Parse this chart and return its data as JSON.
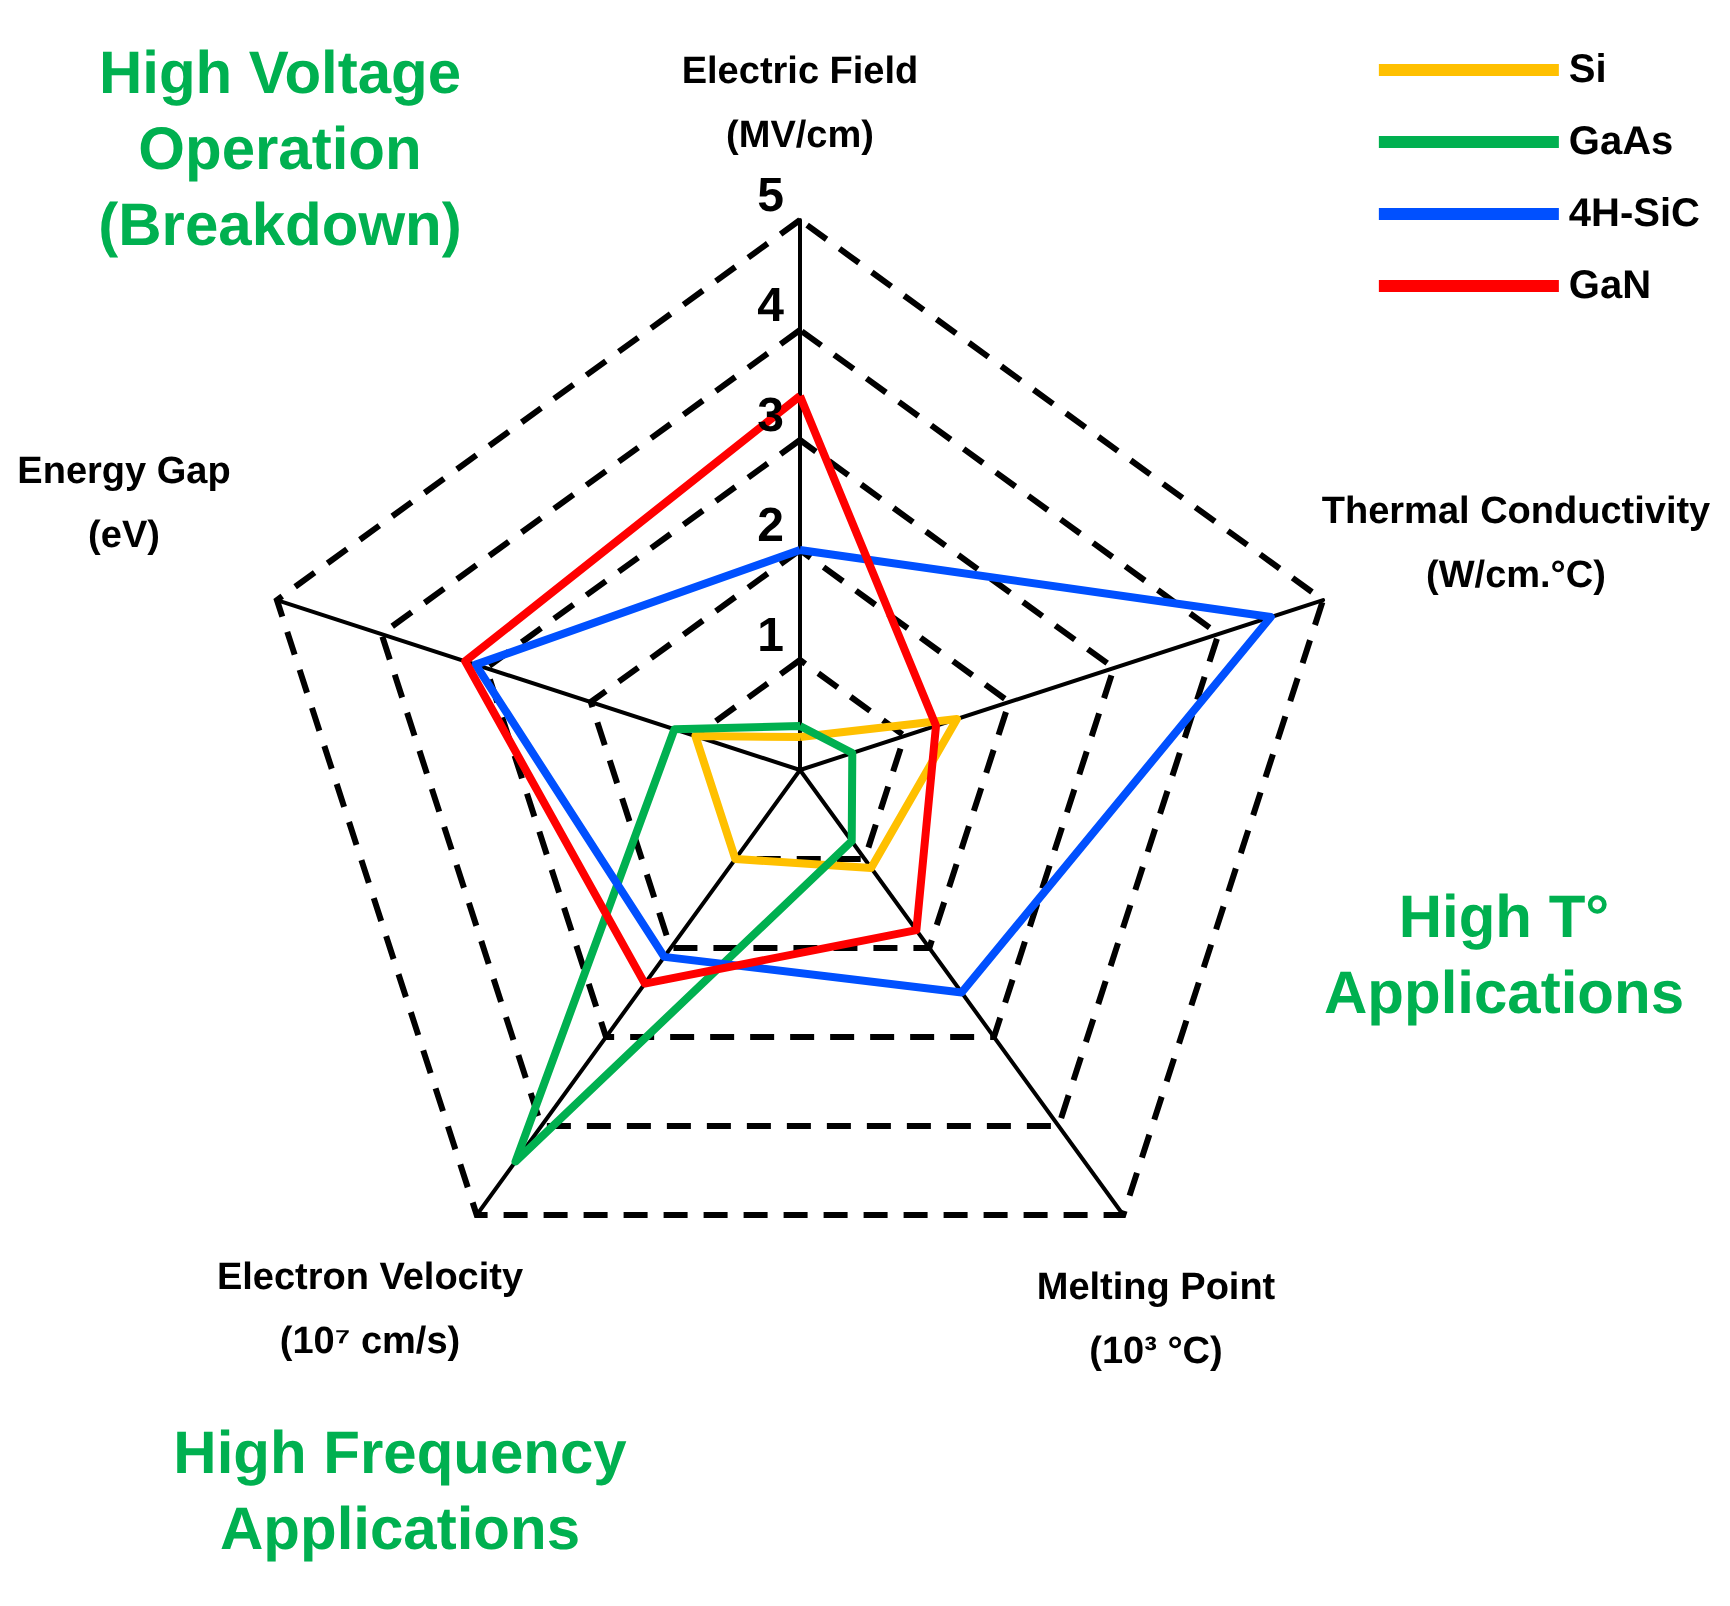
{
  "chart_data": {
    "type": "radar",
    "categories": [
      "Electric Field\n(MV/cm)",
      "Thermal Conductivity\n(W/cm.°C)",
      "Melting Point\n(10³ °C)",
      "Electron Velocity\n(10⁷ cm/s)",
      "Energy Gap\n(eV)"
    ],
    "ylim": [
      0,
      5
    ],
    "yticks": [
      1,
      2,
      3,
      4,
      5
    ],
    "series": [
      {
        "name": "Si",
        "color": "#ffc000",
        "values": [
          0.3,
          1.5,
          1.1,
          1.0,
          1.0
        ]
      },
      {
        "name": "GaAs",
        "color": "#00b050",
        "values": [
          0.4,
          0.5,
          0.8,
          4.4,
          1.2
        ]
      },
      {
        "name": "4H-SiC",
        "color": "#0050ff",
        "values": [
          2.0,
          4.5,
          2.5,
          2.1,
          3.1
        ]
      },
      {
        "name": "GaN",
        "color": "#ff0000",
        "values": [
          3.4,
          1.3,
          1.8,
          2.4,
          3.2
        ]
      }
    ],
    "annotations": [
      "High Voltage\nOperation\n(Breakdown)",
      "High T°\nApplications",
      "High Frequency\nApplications"
    ],
    "legend": "top right",
    "marker": "none",
    "line_style": "solid",
    "grid": true
  }
}
